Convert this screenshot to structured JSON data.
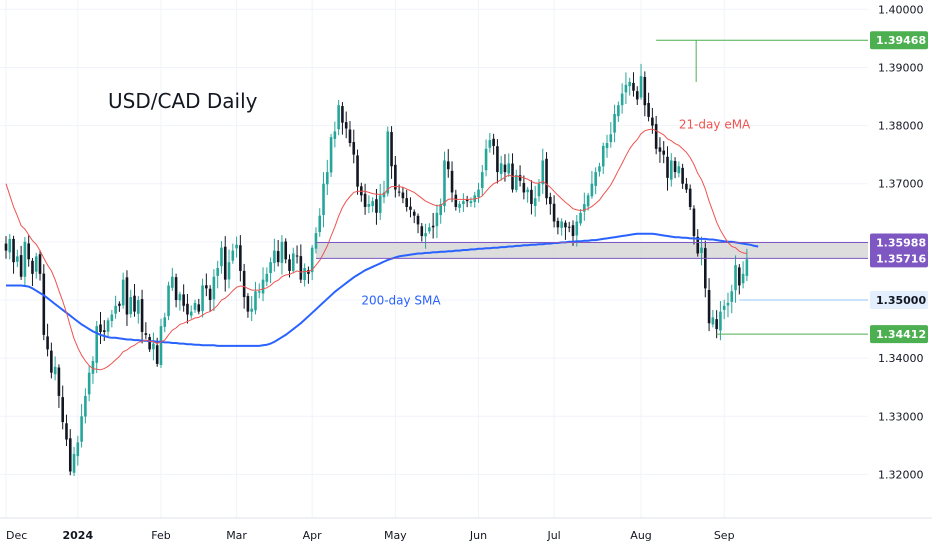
{
  "chart_data": {
    "type": "candlestick",
    "title": "USD/CAD Daily",
    "colors": {
      "up": "#26a69a",
      "down": "#131722",
      "ema": "#ef5350",
      "sma": "#2962ff",
      "resistance_line": "#7e57c2",
      "zone_fill": "#d9d9d9",
      "level_green": "#4caf50",
      "level_blue": "#90caf9",
      "grid": "#f0f3fa",
      "axis_text": "#131722"
    },
    "y_axis": {
      "min": 1.3125,
      "max": 1.4016,
      "ticks": [
        "1.40000",
        "1.39000",
        "1.38000",
        "1.37000",
        "1.36000",
        "1.35000",
        "1.34000",
        "1.33000",
        "1.32000"
      ]
    },
    "x_axis": {
      "ticks": [
        {
          "label": "Dec",
          "index": 0,
          "bold": false
        },
        {
          "label": "2024",
          "index": 19,
          "bold": true
        },
        {
          "label": "Feb",
          "index": 41,
          "bold": false
        },
        {
          "label": "Mar",
          "index": 61,
          "bold": false
        },
        {
          "label": "Apr",
          "index": 81,
          "bold": false
        },
        {
          "label": "May",
          "index": 103,
          "bold": false
        },
        {
          "label": "Jun",
          "index": 125,
          "bold": false
        },
        {
          "label": "Jul",
          "index": 145,
          "bold": false
        },
        {
          "label": "Aug",
          "index": 168,
          "bold": false
        },
        {
          "label": "Sep",
          "index": 190,
          "bold": false
        }
      ]
    },
    "closes": [
      1.3585,
      1.3605,
      1.3565,
      1.3575,
      1.354,
      1.36,
      1.357,
      1.3545,
      1.3575,
      1.3545,
      1.344,
      1.3415,
      1.3375,
      1.3385,
      1.3335,
      1.329,
      1.326,
      1.3205,
      1.3235,
      1.3255,
      1.33,
      1.3335,
      1.3375,
      1.3395,
      1.3455,
      1.3445,
      1.3445,
      1.3465,
      1.3475,
      1.349,
      1.349,
      1.3535,
      1.3475,
      1.3505,
      1.348,
      1.35,
      1.3445,
      1.344,
      1.3415,
      1.3425,
      1.339,
      1.3455,
      1.347,
      1.3525,
      1.354,
      1.35,
      1.351,
      1.349,
      1.3475,
      1.348,
      1.3495,
      1.348,
      1.3525,
      1.352,
      1.35,
      1.354,
      1.3555,
      1.359,
      1.3535,
      1.3565,
      1.3585,
      1.3595,
      1.355,
      1.3505,
      1.348,
      1.3485,
      1.3515,
      1.3515,
      1.3535,
      1.3545,
      1.3565,
      1.3585,
      1.3565,
      1.36,
      1.357,
      1.355,
      1.358,
      1.3575,
      1.3535,
      1.3555,
      1.3545,
      1.359,
      1.3615,
      1.3645,
      1.37,
      1.372,
      1.378,
      1.379,
      1.3835,
      1.3805,
      1.3795,
      1.377,
      1.375,
      1.3695,
      1.368,
      1.366,
      1.3665,
      1.367,
      1.365,
      1.368,
      1.3685,
      1.379,
      1.373,
      1.369,
      1.3685,
      1.3675,
      1.366,
      1.3655,
      1.3645,
      1.363,
      1.361,
      1.3615,
      1.3625,
      1.3625,
      1.365,
      1.3665,
      1.374,
      1.3725,
      1.3685,
      1.366,
      1.3665,
      1.367,
      1.367,
      1.367,
      1.368,
      1.369,
      1.372,
      1.376,
      1.3775,
      1.3765,
      1.372,
      1.3735,
      1.372,
      1.3735,
      1.369,
      1.3715,
      1.3705,
      1.3685,
      1.369,
      1.3665,
      1.3675,
      1.37,
      1.374,
      1.3675,
      1.3665,
      1.3635,
      1.3625,
      1.3635,
      1.3625,
      1.3625,
      1.361,
      1.3635,
      1.365,
      1.3665,
      1.368,
      1.37,
      1.372,
      1.373,
      1.3765,
      1.377,
      1.3785,
      1.382,
      1.3835,
      1.3855,
      1.387,
      1.3875,
      1.386,
      1.3845,
      1.3885,
      1.3835,
      1.3815,
      1.38,
      1.376,
      1.3755,
      1.375,
      1.371,
      1.374,
      1.372,
      1.373,
      1.37,
      1.369,
      1.366,
      1.361,
      1.358,
      1.359,
      1.352,
      1.346,
      1.347,
      1.345,
      1.348,
      1.349,
      1.3495,
      1.3515,
      1.356,
      1.3525,
      1.3545,
      1.357
    ],
    "ema_21": [
      1.37,
      1.368,
      1.366,
      1.3645,
      1.3628,
      1.3622,
      1.3612,
      1.3602,
      1.3596,
      1.3585,
      1.3572,
      1.356,
      1.355,
      1.3535,
      1.3516,
      1.3498,
      1.3478,
      1.3455,
      1.3434,
      1.3418,
      1.3405,
      1.3395,
      1.3387,
      1.3382,
      1.3381,
      1.338,
      1.3382,
      1.3386,
      1.3391,
      1.3397,
      1.3403,
      1.3411,
      1.3414,
      1.3419,
      1.3422,
      1.3427,
      1.3429,
      1.3431,
      1.3429,
      1.3428,
      1.3425,
      1.3428,
      1.3431,
      1.344,
      1.3448,
      1.3452,
      1.3458,
      1.346,
      1.3463,
      1.3466,
      1.3469,
      1.347,
      1.3474,
      1.3478,
      1.348,
      1.3485,
      1.3491,
      1.35,
      1.3503,
      1.3509,
      1.3516,
      1.3522,
      1.3524,
      1.3523,
      1.352,
      1.3517,
      1.3517,
      1.3517,
      1.3519,
      1.3521,
      1.3525,
      1.3531,
      1.3534,
      1.354,
      1.3543,
      1.3544,
      1.3547,
      1.355,
      1.3548,
      1.3549,
      1.3549,
      1.3552,
      1.356,
      1.3568,
      1.358,
      1.3593,
      1.361,
      1.3626,
      1.3644,
      1.3659,
      1.367,
      1.3678,
      1.3685,
      1.3687,
      1.3687,
      1.3687,
      1.3685,
      1.3683,
      1.3682,
      1.3682,
      1.3682,
      1.3691,
      1.3695,
      1.3695,
      1.3695,
      1.3694,
      1.3691,
      1.3688,
      1.3685,
      1.368,
      1.3675,
      1.367,
      1.3667,
      1.3664,
      1.3662,
      1.3662,
      1.3668,
      1.3673,
      1.3674,
      1.3673,
      1.3673,
      1.3673,
      1.3673,
      1.3673,
      1.3674,
      1.3675,
      1.3679,
      1.3687,
      1.3694,
      1.37,
      1.3703,
      1.3707,
      1.3711,
      1.3715,
      1.3713,
      1.3713,
      1.3712,
      1.371,
      1.3708,
      1.3704,
      1.3701,
      1.3701,
      1.3704,
      1.3699,
      1.3694,
      1.3687,
      1.368,
      1.3674,
      1.3668,
      1.3663,
      1.3657,
      1.3655,
      1.3654,
      1.3655,
      1.3657,
      1.3661,
      1.3666,
      1.3672,
      1.3681,
      1.3689,
      1.3698,
      1.371,
      1.3723,
      1.3735,
      1.3748,
      1.376,
      1.3769,
      1.3776,
      1.3786,
      1.3791,
      1.3793,
      1.3794,
      1.3791,
      1.3788,
      1.3784,
      1.3777,
      1.3774,
      1.3769,
      1.3766,
      1.376,
      1.3754,
      1.3745,
      1.3733,
      1.3718,
      1.3707,
      1.3691,
      1.367,
      1.3652,
      1.3634,
      1.362,
      1.3609,
      1.3599,
      1.3592,
      1.359,
      1.3584,
      1.3581,
      1.358
    ],
    "sma_200": [
      1.3525,
      1.3525,
      1.3525,
      1.3525,
      1.3525,
      1.3524,
      1.3523,
      1.352,
      1.3516,
      1.3512,
      1.3508,
      1.3503,
      1.3498,
      1.3493,
      1.3488,
      1.3483,
      1.3478,
      1.3473,
      1.3468,
      1.3463,
      1.3458,
      1.3454,
      1.345,
      1.3446,
      1.3443,
      1.344,
      1.3438,
      1.3436,
      1.3435,
      1.3435,
      1.3434,
      1.3433,
      1.3432,
      1.3432,
      1.3431,
      1.3431,
      1.343,
      1.343,
      1.3429,
      1.3429,
      1.3428,
      1.3428,
      1.3427,
      1.3427,
      1.3426,
      1.3426,
      1.3425,
      1.3425,
      1.3424,
      1.3424,
      1.3423,
      1.3423,
      1.3422,
      1.3422,
      1.3422,
      1.3422,
      1.3421,
      1.3421,
      1.3421,
      1.3421,
      1.3421,
      1.3421,
      1.3421,
      1.3421,
      1.3421,
      1.3421,
      1.3421,
      1.3421,
      1.3422,
      1.3423,
      1.3425,
      1.3428,
      1.3432,
      1.3436,
      1.344,
      1.3445,
      1.345,
      1.3455,
      1.346,
      1.3466,
      1.3472,
      1.3478,
      1.3484,
      1.349,
      1.3496,
      1.3502,
      1.3508,
      1.3514,
      1.3519,
      1.3524,
      1.3529,
      1.3534,
      1.3539,
      1.3543,
      1.3547,
      1.3551,
      1.3554,
      1.3557,
      1.356,
      1.3563,
      1.3566,
      1.3569,
      1.3571,
      1.3573,
      1.3575,
      1.3576,
      1.3577,
      1.3578,
      1.3579,
      1.358,
      1.358,
      1.3581,
      1.3581,
      1.3582,
      1.3582,
      1.3583,
      1.3583,
      1.3584,
      1.3584,
      1.3585,
      1.3585,
      1.3586,
      1.3586,
      1.3587,
      1.3587,
      1.3588,
      1.3588,
      1.3589,
      1.3589,
      1.359,
      1.359,
      1.3591,
      1.3591,
      1.3592,
      1.3592,
      1.3593,
      1.3593,
      1.3594,
      1.3594,
      1.3595,
      1.3595,
      1.3596,
      1.3596,
      1.3597,
      1.3597,
      1.3598,
      1.3598,
      1.3599,
      1.3599,
      1.36,
      1.36,
      1.3601,
      1.3601,
      1.3602,
      1.3602,
      1.3603,
      1.3603,
      1.3604,
      1.3605,
      1.3606,
      1.3607,
      1.3608,
      1.3609,
      1.361,
      1.3611,
      1.3612,
      1.3613,
      1.3614,
      1.3614,
      1.3614,
      1.3614,
      1.3614,
      1.3613,
      1.3612,
      1.3611,
      1.361,
      1.3609,
      1.3608,
      1.3608,
      1.3607,
      1.3607,
      1.3606,
      1.3606,
      1.3605,
      1.3605,
      1.3605,
      1.3604,
      1.3604,
      1.3603,
      1.3602,
      1.3601,
      1.36,
      1.36,
      1.3599,
      1.3598,
      1.3597,
      1.3596,
      1.3595,
      1.3593,
      1.3592
    ],
    "levels": [
      {
        "value": 1.39468,
        "label": "1.39468",
        "style": "green",
        "start_index": 172
      },
      {
        "value": 1.35988,
        "label": "1.35988",
        "style": "purple",
        "start_index": 82
      },
      {
        "value": 1.35716,
        "label": "1.35716",
        "style": "purple",
        "start_index": 82
      },
      {
        "value": 1.35,
        "label": "1.35000",
        "style": "blue",
        "start_index": 194
      },
      {
        "value": 1.34412,
        "label": "1.34412",
        "style": "green",
        "start_index": 188
      }
    ],
    "annotations": [
      {
        "text": "21-day eMA",
        "index": 178,
        "value": 1.3795,
        "color": "ema"
      },
      {
        "text": "200-day SMA",
        "index": 94,
        "value": 1.3492,
        "color": "sma"
      }
    ]
  }
}
